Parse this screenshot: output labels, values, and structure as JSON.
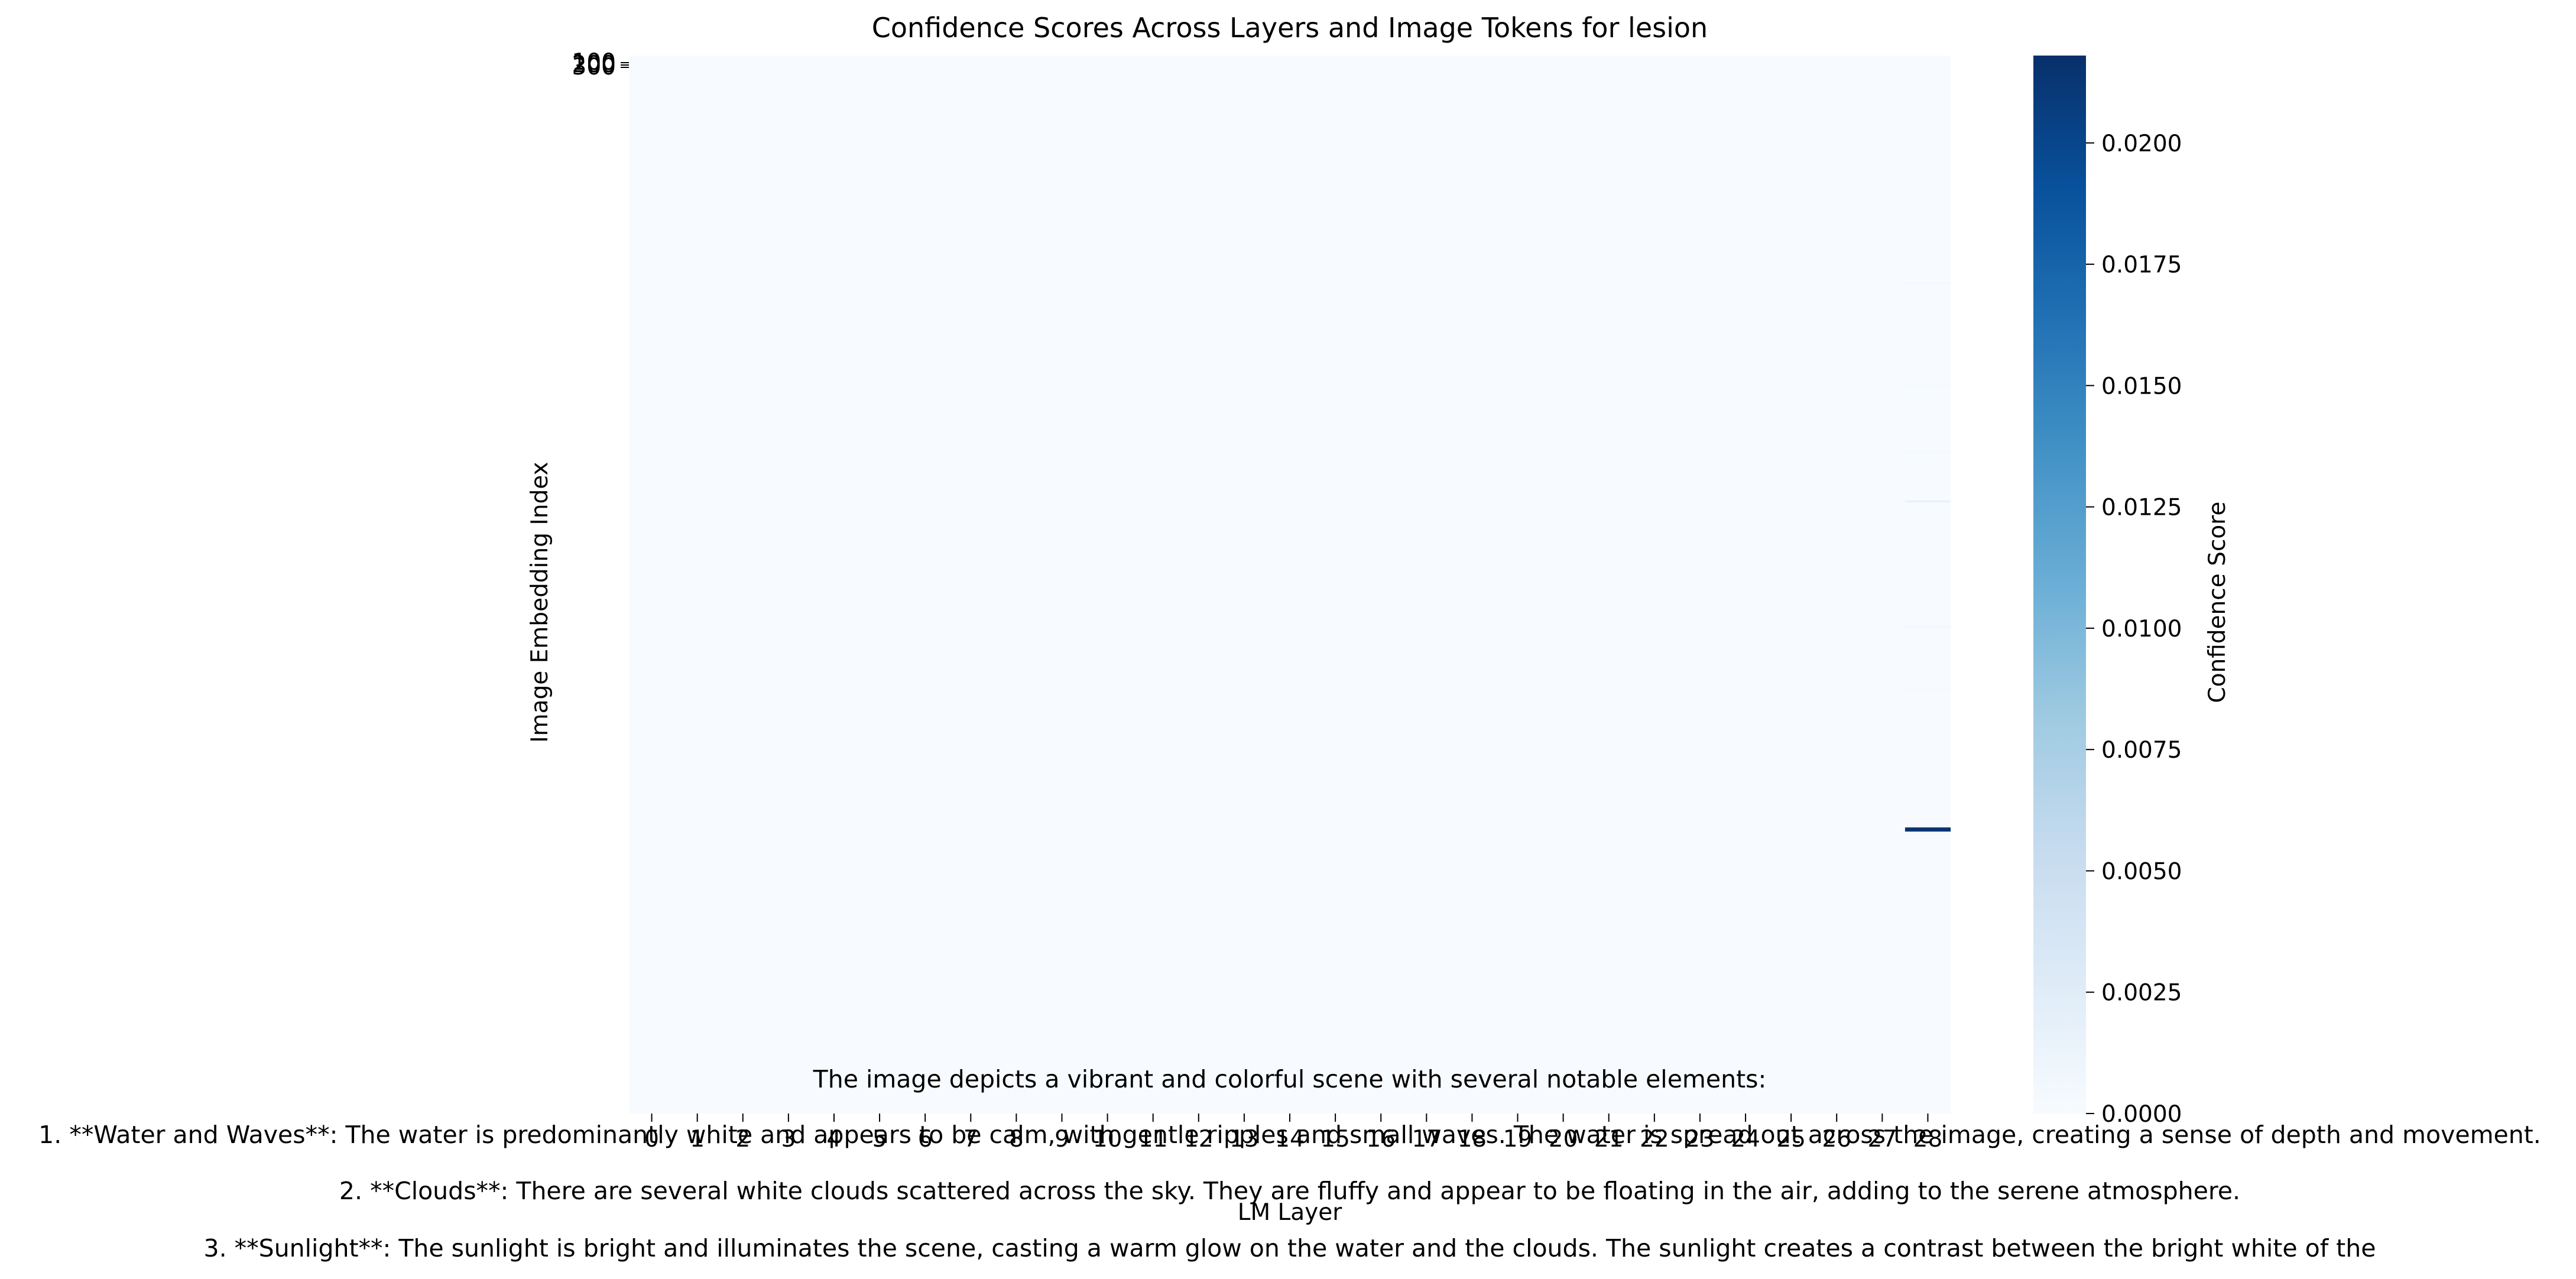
{
  "chart_data": {
    "type": "heatmap",
    "title": "Confidence Scores Across Layers and Image Tokens for lesion",
    "xlabel": "LM Layer",
    "ylabel": "Image Embedding Index",
    "x_ticks": [
      "0",
      "1",
      "2",
      "3",
      "4",
      "5",
      "6",
      "7",
      "8",
      "9",
      "10",
      "11",
      "12",
      "13",
      "14",
      "15",
      "16",
      "17",
      "18",
      "19",
      "20",
      "21",
      "22",
      "23",
      "24",
      "25",
      "26",
      "27",
      "28"
    ],
    "y_ticks_visible": [
      "100",
      "200",
      "300"
    ],
    "y_index_range": [
      0,
      1600
    ],
    "layer_count": 29,
    "colormap": "Blues",
    "colorbar": {
      "label": "Confidence Score",
      "range": [
        0.0,
        0.0218
      ],
      "ticks": [
        "0.0000",
        "0.0025",
        "0.0050",
        "0.0075",
        "0.0100",
        "0.0125",
        "0.0150",
        "0.0175",
        "0.0200"
      ],
      "tick_values": [
        0.0,
        0.0025,
        0.005,
        0.0075,
        0.01,
        0.0125,
        0.015,
        0.0175,
        0.02
      ]
    },
    "background_value": 0.0,
    "highlights": [
      {
        "layer": 28,
        "index": 1170,
        "value": 0.0215
      },
      {
        "layer": 28,
        "index": 675,
        "value": 0.0015
      },
      {
        "layer": 28,
        "index": 865,
        "value": 0.0006
      },
      {
        "layer": 28,
        "index": 345,
        "value": 0.0004
      },
      {
        "layer": 28,
        "index": 500,
        "value": 0.0004
      },
      {
        "layer": 28,
        "index": 600,
        "value": 0.0004
      },
      {
        "layer": 28,
        "index": 960,
        "value": 0.0003
      }
    ],
    "grid": false
  },
  "overlay_text": [
    "The image depicts a vibrant and colorful scene with several notable elements:",
    "1. **Water and Waves**: The water is predominantly white and appears to be calm, with gentle ripples and small waves. The water is spread out across the image, creating a sense of depth and movement.",
    "2. **Clouds**: There are several white clouds scattered across the sky. They are fluffy and appear to be floating in the air, adding to the serene atmosphere.",
    "3. **Sunlight**: The sunlight is bright and illuminates the scene, casting a warm glow on the water and the clouds. The sunlight creates a contrast between the bright white of the"
  ]
}
